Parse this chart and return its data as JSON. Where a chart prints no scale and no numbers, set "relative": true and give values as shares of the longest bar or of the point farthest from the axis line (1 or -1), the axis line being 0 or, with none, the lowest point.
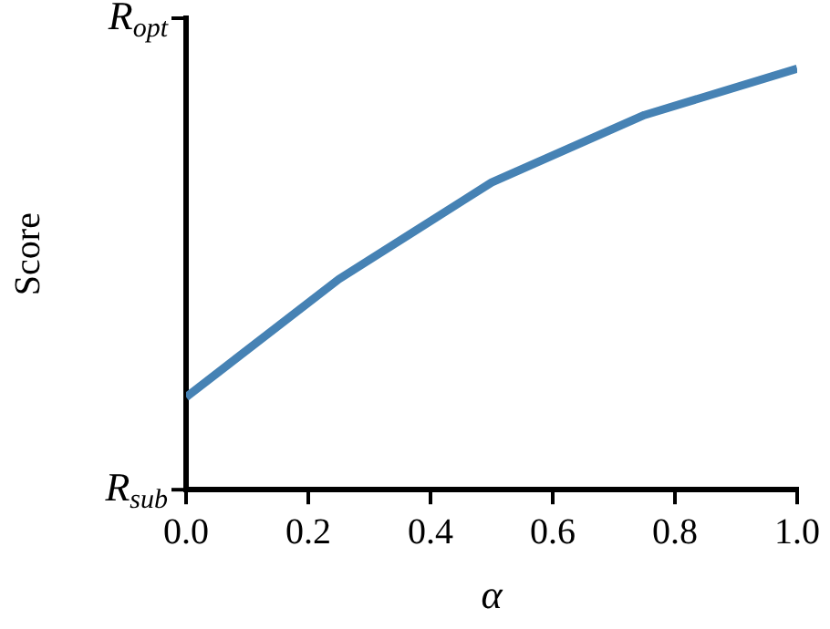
{
  "chart_data": {
    "type": "line",
    "xlabel": "α",
    "ylabel": "Score",
    "relative": true,
    "annotations": [
      "R$_{sub}$",
      "R$_{opt}$"
    ],
    "x": [
      0,
      0.25,
      0.5,
      0.75,
      1.0
    ],
    "series": [
      {
        "color": "#4682b4",
        "values": [
          0.22,
          0.5,
          0.73,
          0.89,
          1
        ]
      }
    ],
    "xlim": [
      0,
      1
    ],
    "xticks": [
      {
        "value": 0,
        "label": "0.0"
      },
      {
        "value": 0.2,
        "label": "0.2"
      },
      {
        "value": 0.4,
        "label": "0.4"
      },
      {
        "value": 0.6,
        "label": "0.6"
      },
      {
        "value": 0.8,
        "label": "0.8"
      },
      {
        "value": 1,
        "label": "1.0"
      }
    ],
    "grid": false,
    "legend": false,
    "marker": "none",
    "line_style": "solid"
  }
}
